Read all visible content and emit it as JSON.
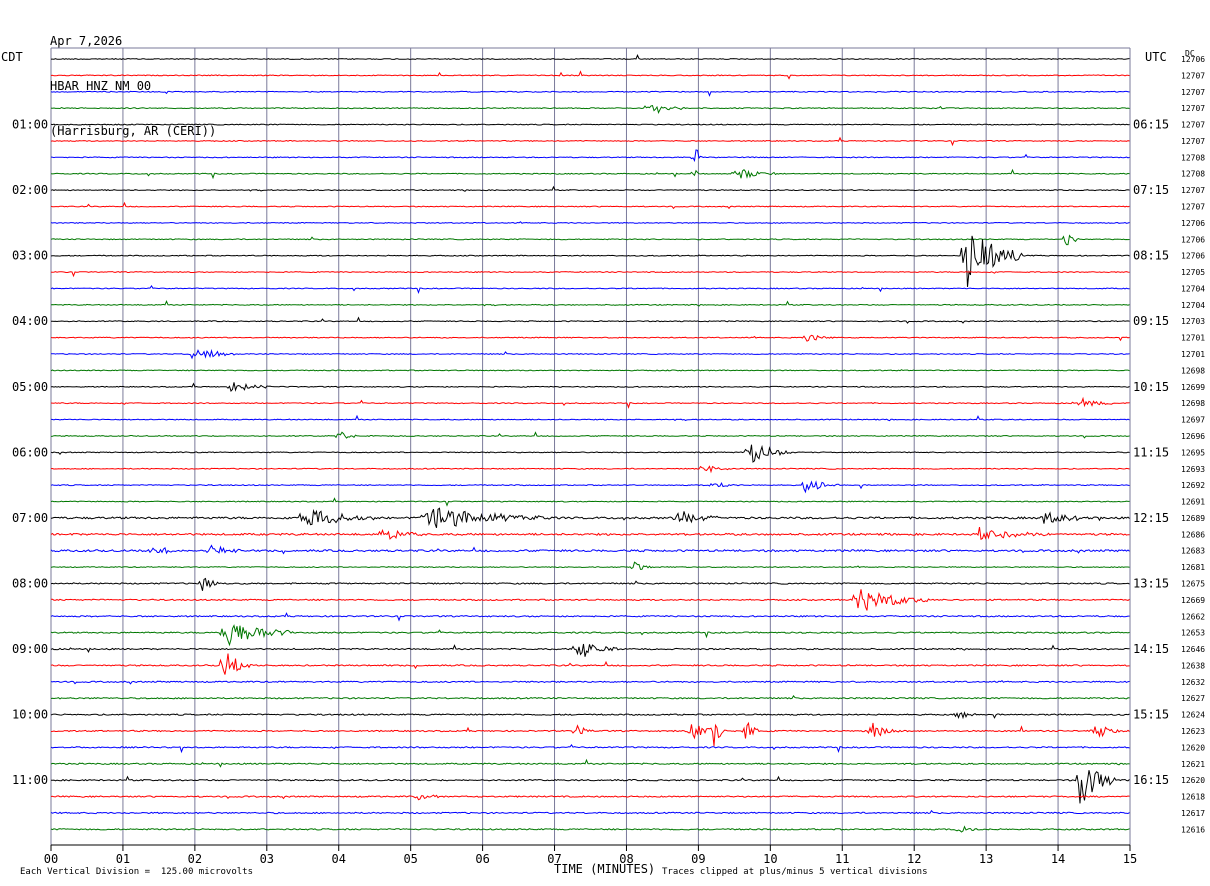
{
  "header": {
    "date": "Apr 7,2026",
    "station": "HBAR HNZ NM 00",
    "location": "(Harrisburg, AR (CERI))"
  },
  "left_label": "CDT",
  "right_label": "UTC",
  "dc_label": "DC",
  "footer": {
    "vertical_division": "Each Vertical Division =  125.00 microvolts",
    "clip_note": "Traces clipped at plus/minus 5 vertical divisions"
  },
  "chart_data": {
    "type": "line",
    "xlabel": "TIME (MINUTES)",
    "xlim": [
      0,
      15
    ],
    "x_ticks": [
      "00",
      "01",
      "02",
      "03",
      "04",
      "05",
      "06",
      "07",
      "08",
      "09",
      "10",
      "11",
      "12",
      "13",
      "14",
      "15"
    ],
    "trace_count": 48,
    "trace_colors": [
      "#000000",
      "#ff0000",
      "#0000ff",
      "#007700"
    ],
    "left_time_labels": [
      {
        "trace": 4,
        "label": "01:00"
      },
      {
        "trace": 8,
        "label": "02:00"
      },
      {
        "trace": 12,
        "label": "03:00"
      },
      {
        "trace": 16,
        "label": "04:00"
      },
      {
        "trace": 20,
        "label": "05:00"
      },
      {
        "trace": 24,
        "label": "06:00"
      },
      {
        "trace": 28,
        "label": "07:00"
      },
      {
        "trace": 32,
        "label": "08:00"
      },
      {
        "trace": 36,
        "label": "09:00"
      },
      {
        "trace": 40,
        "label": "10:00"
      },
      {
        "trace": 44,
        "label": "11:00"
      }
    ],
    "right_time_labels": [
      {
        "trace": 4,
        "label": "06:15"
      },
      {
        "trace": 8,
        "label": "07:15"
      },
      {
        "trace": 12,
        "label": "08:15"
      },
      {
        "trace": 16,
        "label": "09:15"
      },
      {
        "trace": 20,
        "label": "10:15"
      },
      {
        "trace": 24,
        "label": "11:15"
      },
      {
        "trace": 28,
        "label": "12:15"
      },
      {
        "trace": 32,
        "label": "13:15"
      },
      {
        "trace": 36,
        "label": "14:15"
      },
      {
        "trace": 40,
        "label": "15:15"
      },
      {
        "trace": 44,
        "label": "16:15"
      }
    ],
    "dc_values": [
      "12706",
      "12707",
      "12707",
      "12707",
      "12707",
      "12707",
      "12708",
      "12708",
      "12707",
      "12707",
      "12706",
      "12706",
      "12706",
      "12705",
      "12704",
      "12704",
      "12703",
      "12701",
      "12701",
      "12698",
      "12699",
      "12698",
      "12697",
      "12696",
      "12695",
      "12693",
      "12692",
      "12691",
      "12689",
      "12686",
      "12683",
      "12681",
      "12675",
      "12669",
      "12662",
      "12653",
      "12646",
      "12638",
      "12632",
      "12627",
      "12624",
      "12623",
      "12620",
      "12621",
      "12620",
      "12618",
      "12617",
      "12616"
    ],
    "events": [
      {
        "trace": 3,
        "t": 8.3,
        "amp": 1.0,
        "dur": 0.5
      },
      {
        "trace": 6,
        "t": 8.95,
        "amp": 1.8,
        "dur": 0.1
      },
      {
        "trace": 7,
        "t": 9.5,
        "amp": 0.8,
        "dur": 0.6
      },
      {
        "trace": 7,
        "t": 8.95,
        "amp": 0.7,
        "dur": 0.1
      },
      {
        "trace": 12,
        "t": 12.7,
        "amp": 4.0,
        "dur": 0.8
      },
      {
        "trace": 11,
        "t": 14.1,
        "amp": 1.3,
        "dur": 0.2
      },
      {
        "trace": 17,
        "t": 10.5,
        "amp": 0.6,
        "dur": 0.4
      },
      {
        "trace": 18,
        "t": 1.95,
        "amp": 1.0,
        "dur": 0.6
      },
      {
        "trace": 20,
        "t": 2.5,
        "amp": 0.6,
        "dur": 0.6
      },
      {
        "trace": 21,
        "t": 14.3,
        "amp": 0.7,
        "dur": 0.5
      },
      {
        "trace": 23,
        "t": 4.0,
        "amp": 0.7,
        "dur": 0.3
      },
      {
        "trace": 24,
        "t": 9.7,
        "amp": 1.5,
        "dur": 0.6
      },
      {
        "trace": 25,
        "t": 9.1,
        "amp": 0.5,
        "dur": 0.4
      },
      {
        "trace": 26,
        "t": 9.2,
        "amp": 0.5,
        "dur": 0.4
      },
      {
        "trace": 26,
        "t": 10.45,
        "amp": 1.0,
        "dur": 0.5
      },
      {
        "trace": 28,
        "t": 3.5,
        "amp": 1.4,
        "dur": 1.0
      },
      {
        "trace": 28,
        "t": 5.2,
        "amp": 1.5,
        "dur": 1.8
      },
      {
        "trace": 28,
        "t": 8.7,
        "amp": 0.9,
        "dur": 0.6
      },
      {
        "trace": 28,
        "t": 13.8,
        "amp": 0.8,
        "dur": 0.8
      },
      {
        "trace": 29,
        "t": 4.6,
        "amp": 0.8,
        "dur": 0.6
      },
      {
        "trace": 29,
        "t": 12.9,
        "amp": 0.7,
        "dur": 1.0
      },
      {
        "trace": 30,
        "t": 1.4,
        "amp": 0.8,
        "dur": 0.4
      },
      {
        "trace": 30,
        "t": 2.2,
        "amp": 0.6,
        "dur": 0.6
      },
      {
        "trace": 31,
        "t": 8.1,
        "amp": 0.6,
        "dur": 0.3
      },
      {
        "trace": 32,
        "t": 2.1,
        "amp": 0.9,
        "dur": 0.3
      },
      {
        "trace": 33,
        "t": 11.2,
        "amp": 1.6,
        "dur": 1.0
      },
      {
        "trace": 35,
        "t": 2.4,
        "amp": 1.8,
        "dur": 1.0
      },
      {
        "trace": 36,
        "t": 7.3,
        "amp": 1.3,
        "dur": 0.6
      },
      {
        "trace": 37,
        "t": 2.4,
        "amp": 2.0,
        "dur": 0.4
      },
      {
        "trace": 40,
        "t": 12.6,
        "amp": 0.6,
        "dur": 0.3
      },
      {
        "trace": 41,
        "t": 7.3,
        "amp": 0.6,
        "dur": 0.3
      },
      {
        "trace": 41,
        "t": 8.9,
        "amp": 1.0,
        "dur": 0.5
      },
      {
        "trace": 41,
        "t": 9.2,
        "amp": 1.9,
        "dur": 0.2
      },
      {
        "trace": 41,
        "t": 9.65,
        "amp": 1.4,
        "dur": 0.2
      },
      {
        "trace": 41,
        "t": 11.4,
        "amp": 1.2,
        "dur": 0.4
      },
      {
        "trace": 41,
        "t": 14.5,
        "amp": 0.9,
        "dur": 0.5
      },
      {
        "trace": 44,
        "t": 14.3,
        "amp": 3.2,
        "dur": 0.5
      },
      {
        "trace": 45,
        "t": 5.1,
        "amp": 0.5,
        "dur": 0.4
      },
      {
        "trace": 47,
        "t": 12.6,
        "amp": 0.5,
        "dur": 0.4
      }
    ]
  }
}
